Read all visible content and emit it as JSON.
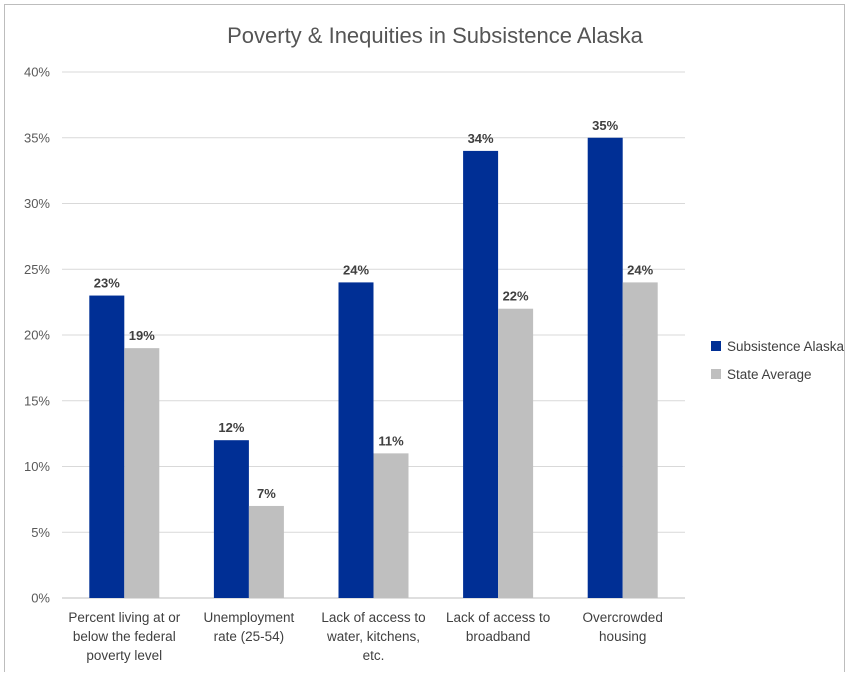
{
  "chart_data": {
    "type": "bar",
    "title": "Poverty & Inequities in Subsistence Alaska",
    "categories": [
      [
        "Percent living at or",
        "below the federal",
        "poverty level"
      ],
      [
        "Unemployment",
        "rate (25-54)"
      ],
      [
        "Lack of access to",
        "water, kitchens,",
        "etc."
      ],
      [
        "Lack of access to",
        "broadband"
      ],
      [
        "Overcrowded",
        "housing"
      ]
    ],
    "series": [
      {
        "name": "Subsistence Alaska",
        "color": "#002f95",
        "values": [
          23,
          12,
          24,
          34,
          35
        ],
        "labels": [
          "23%",
          "12%",
          "24%",
          "34%",
          "35%"
        ]
      },
      {
        "name": "State Average",
        "color": "#bfbfbf",
        "values": [
          19,
          7,
          11,
          22,
          24
        ],
        "labels": [
          "19%",
          "7%",
          "11%",
          "22%",
          "24%"
        ]
      }
    ],
    "ylim": [
      0,
      40
    ],
    "yticks": [
      "0%",
      "5%",
      "10%",
      "15%",
      "20%",
      "25%",
      "30%",
      "35%",
      "40%"
    ],
    "grid": true,
    "legend": "right"
  }
}
